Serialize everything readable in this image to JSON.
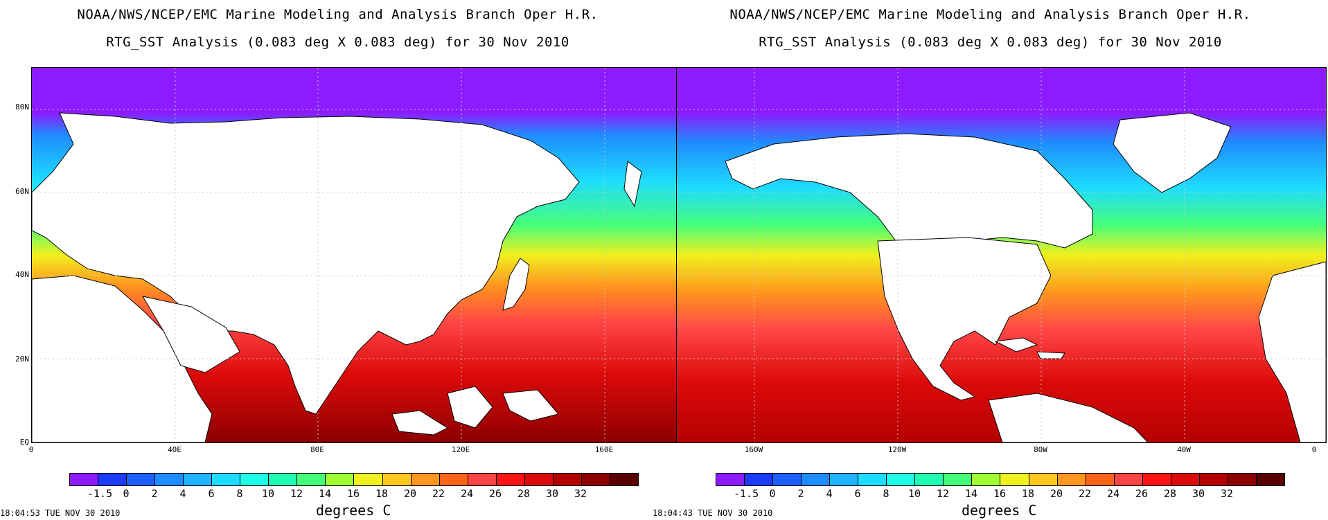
{
  "panels": [
    {
      "title_line1": "NOAA/NWS/NCEP/EMC Marine Modeling and Analysis Branch Oper H.R.",
      "title_line2": "RTG_SST Analysis (0.083 deg X 0.083 deg) for 30 Nov 2010",
      "lat_labels": [
        "80N",
        "60N",
        "40N",
        "20N",
        "EQ"
      ],
      "lon_labels": [
        "0",
        "40E",
        "80E",
        "120E",
        "160E"
      ],
      "timestamp": "18:04:53  TUE NOV 30 2010"
    },
    {
      "title_line1": "NOAA/NWS/NCEP/EMC Marine Modeling and Analysis Branch Oper H.R.",
      "title_line2": "RTG_SST Analysis (0.083 deg X 0.083 deg) for 30 Nov 2010",
      "lat_labels": [],
      "lon_labels": [
        "160W",
        "120W",
        "80W",
        "40W",
        "0"
      ],
      "timestamp": "18:04:43  TUE NOV 30 2010"
    }
  ],
  "colorbar": {
    "units": "degrees C",
    "tick_labels": [
      "-1.5",
      "0",
      "2",
      "4",
      "6",
      "8",
      "10",
      "12",
      "14",
      "16",
      "18",
      "20",
      "22",
      "24",
      "26",
      "28",
      "30",
      "32"
    ],
    "colors": [
      "#8c1cff",
      "#1c3cff",
      "#1c60ff",
      "#1e8cff",
      "#1eb4ff",
      "#1edcff",
      "#1effe6",
      "#1effb4",
      "#46ff78",
      "#a0ff32",
      "#f0f01e",
      "#ffc81e",
      "#ff961e",
      "#ff6418",
      "#ff4646",
      "#ff1414",
      "#dc0a0a",
      "#b40000",
      "#8c0000",
      "#5a0000"
    ]
  }
}
